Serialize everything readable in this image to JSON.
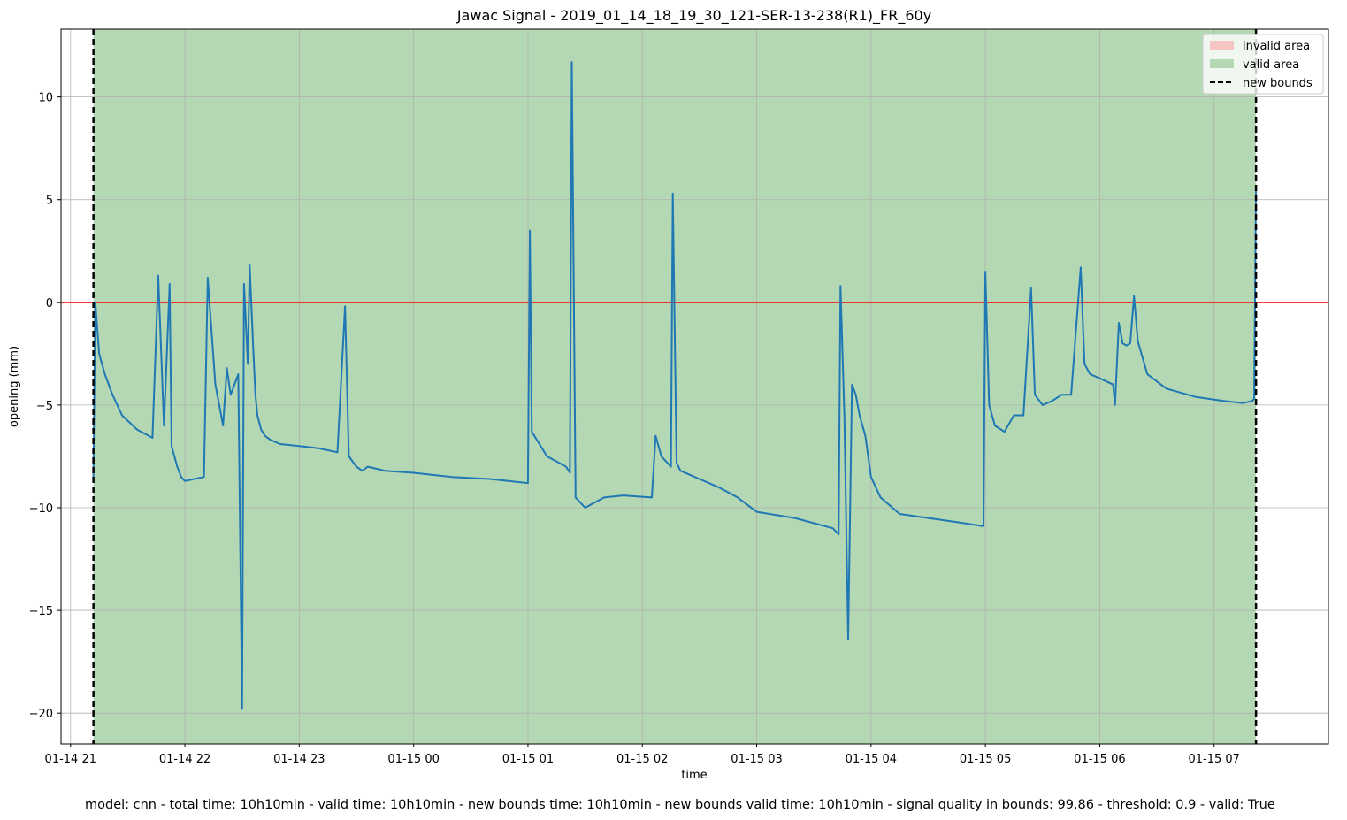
{
  "chart_data": {
    "type": "line",
    "title": "Jawac Signal - 2019_01_14_18_19_30_121-SER-13-238(R1)_FR_60y",
    "xlabel": "time",
    "ylabel": "opening (mm)",
    "xlim": [
      "2019-01-14 20:55",
      "2019-01-15 08:00"
    ],
    "ylim": [
      -21.5,
      13.3
    ],
    "x_axis_type": "datetime",
    "x_ticks": [
      {
        "value": "2019-01-14 21:00",
        "label": "01-14 21"
      },
      {
        "value": "2019-01-14 22:00",
        "label": "01-14 22"
      },
      {
        "value": "2019-01-14 23:00",
        "label": "01-14 23"
      },
      {
        "value": "2019-01-15 00:00",
        "label": "01-15 00"
      },
      {
        "value": "2019-01-15 01:00",
        "label": "01-15 01"
      },
      {
        "value": "2019-01-15 02:00",
        "label": "01-15 02"
      },
      {
        "value": "2019-01-15 03:00",
        "label": "01-15 03"
      },
      {
        "value": "2019-01-15 04:00",
        "label": "01-15 04"
      },
      {
        "value": "2019-01-15 05:00",
        "label": "01-15 05"
      },
      {
        "value": "2019-01-15 06:00",
        "label": "01-15 06"
      },
      {
        "value": "2019-01-15 07:00",
        "label": "01-15 07"
      }
    ],
    "y_ticks": [
      {
        "value": 10,
        "label": "10"
      },
      {
        "value": 5,
        "label": "5"
      },
      {
        "value": 0,
        "label": "0"
      },
      {
        "value": -5,
        "label": "−5"
      },
      {
        "value": -10,
        "label": "−10"
      },
      {
        "value": -15,
        "label": "−15"
      },
      {
        "value": -20,
        "label": "−20"
      }
    ],
    "grid": true,
    "legend_position": "top-right",
    "legend": [
      {
        "label": "invalid area",
        "kind": "patch",
        "color": "#f5c5c4"
      },
      {
        "label": "valid area",
        "kind": "patch",
        "color": "#b3d8b3"
      },
      {
        "label": "new bounds",
        "kind": "dashed-line",
        "color": "#000000"
      }
    ],
    "valid_area": {
      "start": "2019-01-14 21:12",
      "end": "2019-01-15 07:22",
      "color": "#b3d8b3"
    },
    "new_bounds": [
      "2019-01-14 21:12",
      "2019-01-15 07:22"
    ],
    "reference_line": {
      "y": 0,
      "color": "#ff0000"
    },
    "series": [
      {
        "color": "#1f77b4",
        "x": [
          "2019-01-14 21:12",
          "2019-01-14 21:13",
          "2019-01-14 21:15",
          "2019-01-14 21:18",
          "2019-01-14 21:22",
          "2019-01-14 21:27",
          "2019-01-14 21:35",
          "2019-01-14 21:43",
          "2019-01-14 21:46",
          "2019-01-14 21:49",
          "2019-01-14 21:52",
          "2019-01-14 21:53",
          "2019-01-14 21:56",
          "2019-01-14 21:58",
          "2019-01-14 22:00",
          "2019-01-14 22:05",
          "2019-01-14 22:10",
          "2019-01-14 22:12",
          "2019-01-14 22:16",
          "2019-01-14 22:20",
          "2019-01-14 22:22",
          "2019-01-14 22:24",
          "2019-01-14 22:28",
          "2019-01-14 22:30",
          "2019-01-14 22:31",
          "2019-01-14 22:33",
          "2019-01-14 22:34",
          "2019-01-14 22:36",
          "2019-01-14 22:37",
          "2019-01-14 22:38",
          "2019-01-14 22:40",
          "2019-01-14 22:42",
          "2019-01-14 22:45",
          "2019-01-14 22:50",
          "2019-01-14 23:00",
          "2019-01-14 23:10",
          "2019-01-14 23:20",
          "2019-01-14 23:24",
          "2019-01-14 23:26",
          "2019-01-14 23:30",
          "2019-01-14 23:33",
          "2019-01-14 23:36",
          "2019-01-14 23:45",
          "2019-01-15 00:00",
          "2019-01-15 00:20",
          "2019-01-15 00:40",
          "2019-01-15 01:00",
          "2019-01-15 01:01",
          "2019-01-15 01:02",
          "2019-01-15 01:10",
          "2019-01-15 01:20",
          "2019-01-15 01:22",
          "2019-01-15 01:23",
          "2019-01-15 01:25",
          "2019-01-15 01:30",
          "2019-01-15 01:34",
          "2019-01-15 01:40",
          "2019-01-15 01:50",
          "2019-01-15 02:05",
          "2019-01-15 02:07",
          "2019-01-15 02:10",
          "2019-01-15 02:15",
          "2019-01-15 02:16",
          "2019-01-15 02:18",
          "2019-01-15 02:20",
          "2019-01-15 02:30",
          "2019-01-15 02:40",
          "2019-01-15 02:50",
          "2019-01-15 03:00",
          "2019-01-15 03:20",
          "2019-01-15 03:40",
          "2019-01-15 03:43",
          "2019-01-15 03:44",
          "2019-01-15 03:46",
          "2019-01-15 03:48",
          "2019-01-15 03:50",
          "2019-01-15 03:52",
          "2019-01-15 03:54",
          "2019-01-15 03:57",
          "2019-01-15 04:00",
          "2019-01-15 04:05",
          "2019-01-15 04:15",
          "2019-01-15 04:30",
          "2019-01-15 04:45",
          "2019-01-15 04:59",
          "2019-01-15 05:00",
          "2019-01-15 05:02",
          "2019-01-15 05:05",
          "2019-01-15 05:10",
          "2019-01-15 05:15",
          "2019-01-15 05:20",
          "2019-01-15 05:24",
          "2019-01-15 05:26",
          "2019-01-15 05:30",
          "2019-01-15 05:35",
          "2019-01-15 05:40",
          "2019-01-15 05:45",
          "2019-01-15 05:50",
          "2019-01-15 05:52",
          "2019-01-15 05:55",
          "2019-01-15 06:00",
          "2019-01-15 06:07",
          "2019-01-15 06:08",
          "2019-01-15 06:10",
          "2019-01-15 06:12",
          "2019-01-15 06:14",
          "2019-01-15 06:16",
          "2019-01-15 06:18",
          "2019-01-15 06:20",
          "2019-01-15 06:25",
          "2019-01-15 06:35",
          "2019-01-15 06:50",
          "2019-01-15 07:05",
          "2019-01-15 07:15",
          "2019-01-15 07:20",
          "2019-01-15 07:21",
          "2019-01-15 07:22"
        ],
        "values": [
          -8.5,
          0.0,
          -2.5,
          -3.5,
          -4.5,
          -5.5,
          -6.2,
          -6.6,
          1.3,
          -6.0,
          0.9,
          -7.0,
          -8.0,
          -8.5,
          -8.7,
          -8.6,
          -8.5,
          1.2,
          -4.0,
          -6.0,
          -3.2,
          -4.5,
          -3.5,
          -19.8,
          0.9,
          -3.0,
          1.8,
          -2.5,
          -4.5,
          -5.5,
          -6.2,
          -6.5,
          -6.7,
          -6.9,
          -7.0,
          -7.1,
          -7.3,
          -0.2,
          -7.5,
          -8.0,
          -8.2,
          -8.0,
          -8.2,
          -8.3,
          -8.5,
          -8.6,
          -8.8,
          3.5,
          -6.3,
          -7.5,
          -8.0,
          -8.3,
          11.7,
          -9.5,
          -10.0,
          -9.8,
          -9.5,
          -9.4,
          -9.5,
          -6.5,
          -7.5,
          -8.0,
          5.3,
          -7.8,
          -8.2,
          -8.6,
          -9.0,
          -9.5,
          -10.2,
          -10.5,
          -11.0,
          -11.3,
          0.8,
          -5.5,
          -16.4,
          -4.0,
          -4.5,
          -5.5,
          -6.5,
          -8.5,
          -9.5,
          -10.3,
          -10.5,
          -10.7,
          -10.9,
          1.5,
          -5.0,
          -6.0,
          -6.3,
          -5.5,
          -5.5,
          0.7,
          -4.5,
          -5.0,
          -4.8,
          -4.5,
          -4.5,
          1.7,
          -3.0,
          -3.5,
          -3.7,
          -4.0,
          -5.0,
          -1.0,
          -2.0,
          -2.1,
          -2.0,
          0.3,
          -1.9,
          -3.5,
          -4.2,
          -4.6,
          -4.8,
          -4.9,
          -4.8,
          -4.7,
          5.6
        ]
      }
    ]
  },
  "footer": {
    "text": "model: cnn - total time: 10h10min - valid time: 10h10min - new bounds time: 10h10min - new bounds valid time: 10h10min - signal quality in bounds: 99.86 - threshold: 0.9 - valid: True"
  }
}
